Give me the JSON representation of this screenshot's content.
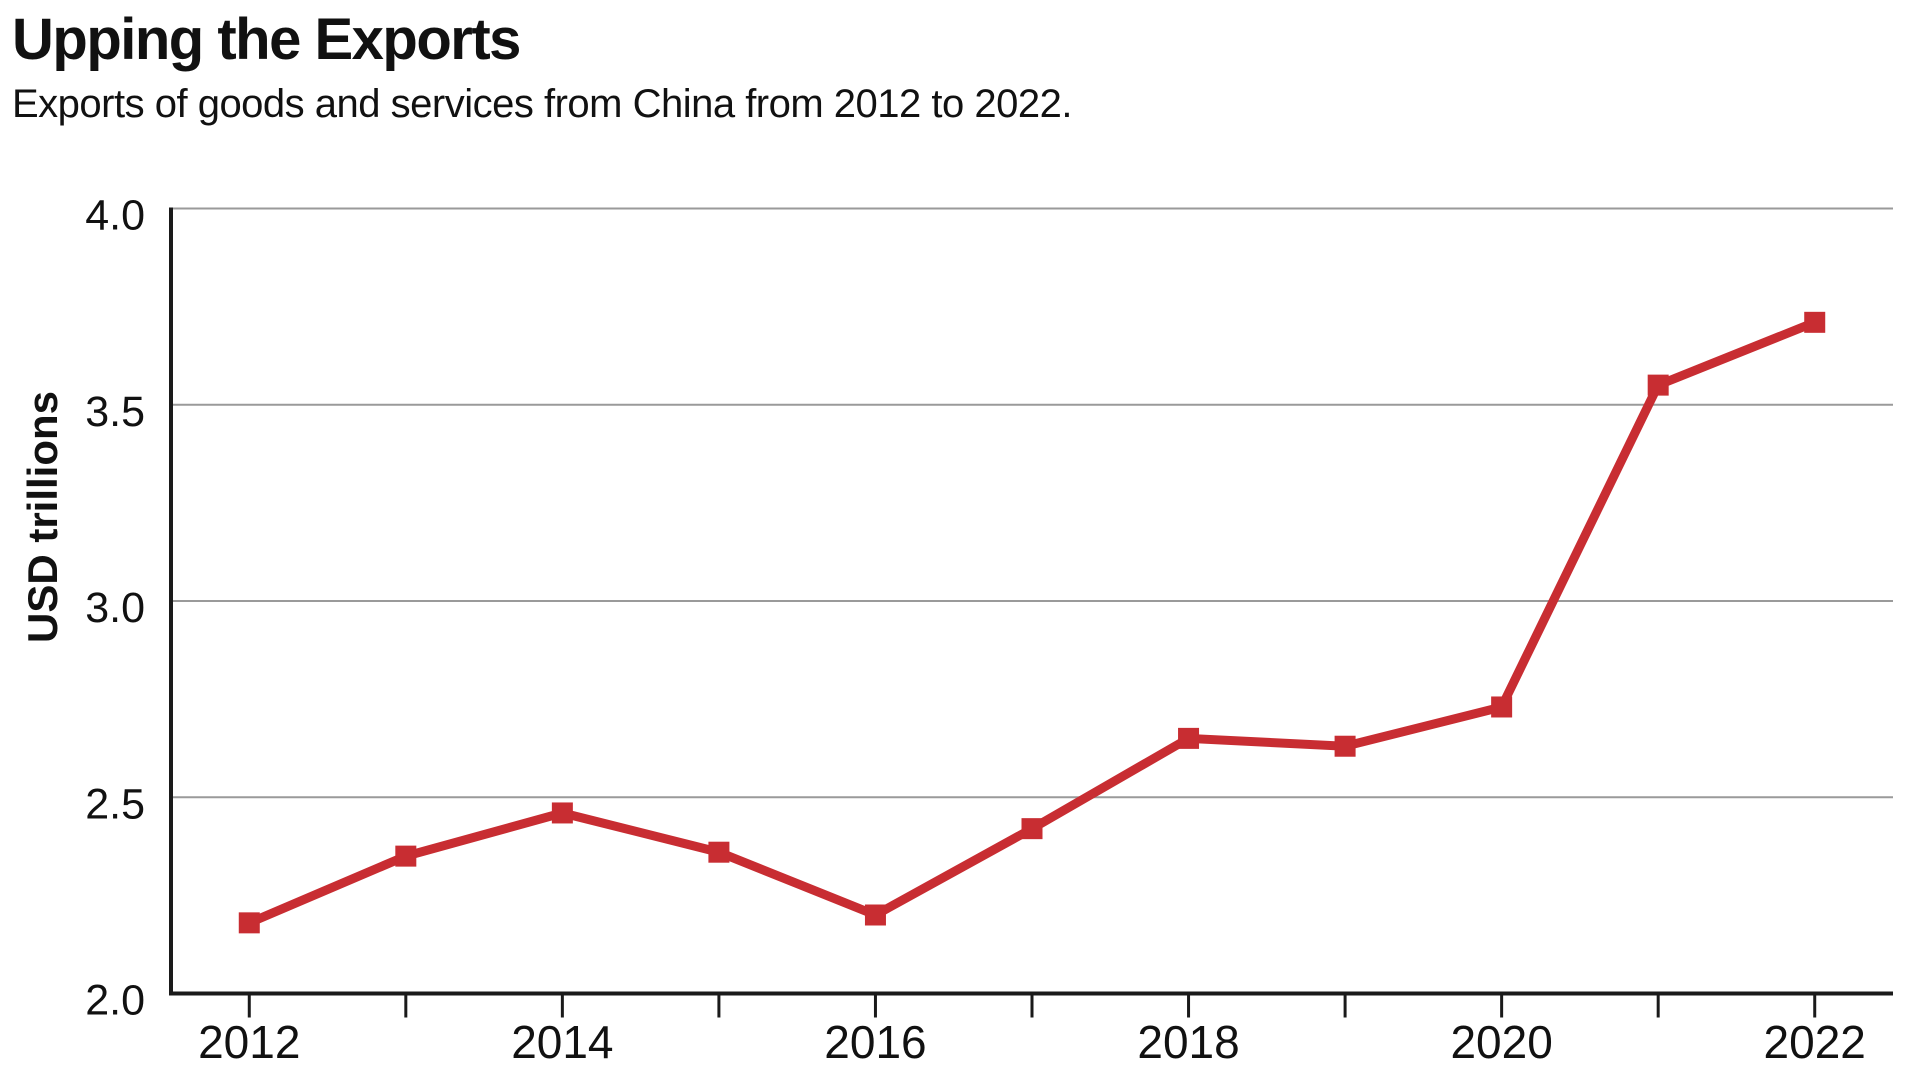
{
  "page": {
    "background": "#ffffff"
  },
  "chart_data": {
    "type": "line",
    "title": "Upping the Exports",
    "subtitle": "Exports of goods and services from China from 2012 to 2022.",
    "xlabel": "",
    "ylabel": "USD trillions",
    "categories": [
      "2012",
      "2013",
      "2014",
      "2015",
      "2016",
      "2017",
      "2018",
      "2019",
      "2020",
      "2021",
      "2022"
    ],
    "series": [
      {
        "name": "Exports of goods and services from China (USD trillions)",
        "values": [
          2.18,
          2.35,
          2.46,
          2.36,
          2.2,
          2.42,
          2.65,
          2.63,
          2.73,
          3.55,
          3.71
        ]
      }
    ],
    "ylim": [
      2.0,
      4.0
    ],
    "y_ticks": [
      "2.0",
      "2.5",
      "3.0",
      "3.5",
      "4.0"
    ],
    "y_gridlines": [
      2.5,
      3.0,
      3.5,
      4.0
    ],
    "x_labeled_categories": [
      "2012",
      "2014",
      "2016",
      "2018",
      "2020",
      "2022"
    ],
    "grid": "horizontal-only",
    "legend": "none",
    "marker": "square",
    "colors": {
      "series": "#C82D32",
      "gridline": "#9a9a9a",
      "axis": "#1a1a1a",
      "text": "#111111",
      "background": "#ffffff"
    }
  }
}
